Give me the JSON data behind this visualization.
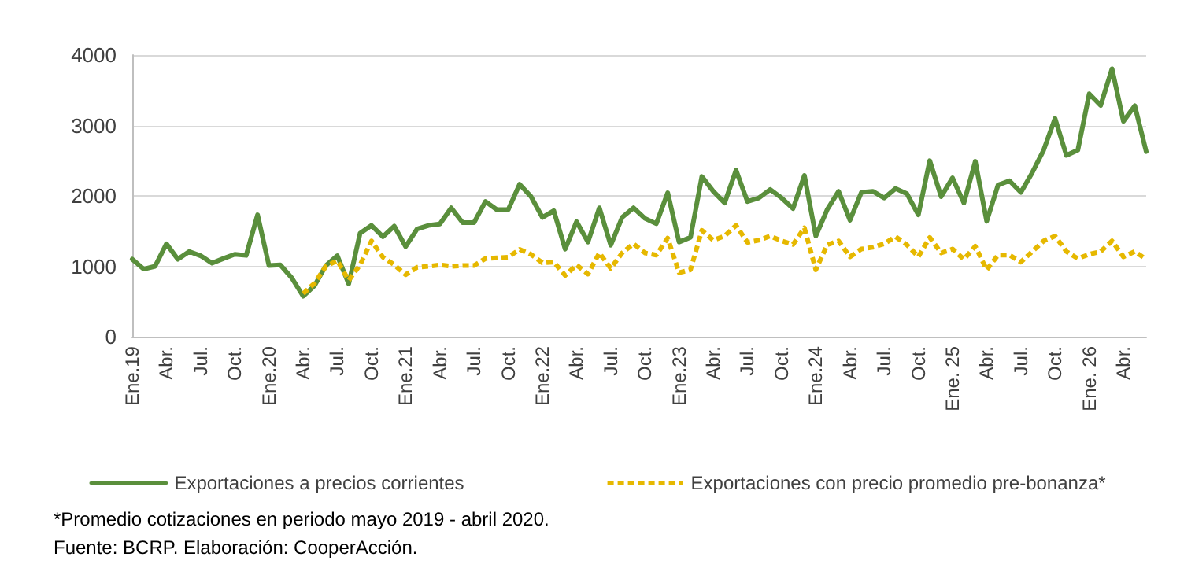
{
  "chart_data": {
    "type": "line",
    "categories": [
      "Ene.19",
      null,
      null,
      "Abr.",
      null,
      null,
      "Jul.",
      null,
      null,
      "Oct.",
      null,
      null,
      "Ene.20",
      null,
      null,
      "Abr.",
      null,
      null,
      "Jul.",
      null,
      null,
      "Oct.",
      null,
      null,
      "Ene.21",
      null,
      null,
      "Abr.",
      null,
      null,
      "Jul.",
      null,
      null,
      "Oct.",
      null,
      null,
      "Ene.22",
      null,
      null,
      "Abr.",
      null,
      null,
      "Jul.",
      null,
      null,
      "Oct.",
      null,
      null,
      "Ene.23",
      null,
      null,
      "Abr.",
      null,
      null,
      "Jul.",
      null,
      null,
      "Oct.",
      null,
      null,
      "Ene.24",
      null,
      null,
      "Abr.",
      null,
      null,
      "Jul.",
      null,
      null,
      "Oct.",
      null,
      null,
      "Ene. 25",
      null,
      null,
      "Abr.",
      null,
      null,
      "Jul.",
      null,
      null,
      "Oct.",
      null,
      null,
      "Ene. 26",
      null,
      null,
      "Abr.",
      null,
      null
    ],
    "series": [
      {
        "name": "Exportaciones a precios corrientes",
        "color": "#5a8f3c",
        "line_style": "solid",
        "values": [
          1100,
          960,
          1000,
          1320,
          1100,
          1210,
          1150,
          1045,
          1110,
          1170,
          1155,
          1730,
          1010,
          1020,
          835,
          575,
          725,
          1010,
          1150,
          750,
          1470,
          1580,
          1420,
          1570,
          1280,
          1530,
          1580,
          1600,
          1830,
          1620,
          1620,
          1920,
          1805,
          1805,
          2165,
          1990,
          1695,
          1790,
          1245,
          1635,
          1345,
          1830,
          1300,
          1695,
          1830,
          1680,
          1605,
          2045,
          1345,
          1410,
          2275,
          2065,
          1900,
          2365,
          1920,
          1970,
          2090,
          1970,
          1820,
          2290,
          1430,
          1805,
          2065,
          1655,
          2050,
          2065,
          1970,
          2105,
          2030,
          1730,
          2500,
          1990,
          2255,
          1900,
          2490,
          1640,
          2155,
          2215,
          2050,
          2330,
          2650,
          3100,
          2575,
          2650,
          3450,
          3285,
          3805,
          3060,
          3280,
          2630
        ]
      },
      {
        "name": "Exportaciones con precio promedio pre-bonanza*",
        "color": "#e6b800",
        "line_style": "dashed",
        "values": [
          null,
          null,
          null,
          null,
          null,
          null,
          null,
          null,
          null,
          null,
          null,
          null,
          null,
          null,
          null,
          610,
          760,
          1000,
          1080,
          800,
          1020,
          1360,
          1130,
          1020,
          880,
          985,
          1000,
          1020,
          1000,
          1010,
          1010,
          1110,
          1120,
          1130,
          1240,
          1170,
          1050,
          1060,
          870,
          1020,
          890,
          1190,
          970,
          1190,
          1320,
          1190,
          1160,
          1400,
          910,
          950,
          1510,
          1370,
          1430,
          1580,
          1340,
          1370,
          1430,
          1360,
          1310,
          1545,
          950,
          1305,
          1360,
          1135,
          1245,
          1270,
          1320,
          1420,
          1305,
          1135,
          1410,
          1190,
          1245,
          1100,
          1285,
          950,
          1160,
          1160,
          1060,
          1210,
          1360,
          1430,
          1210,
          1110,
          1170,
          1210,
          1360,
          1135,
          1210,
          1100
        ]
      }
    ],
    "ylim": [
      0,
      4000
    ],
    "yticks": [
      0,
      1000,
      2000,
      3000,
      4000
    ],
    "grid": "y",
    "legend": "bottom",
    "marker": "none",
    "annotations": [
      "*Promedio cotizaciones en periodo mayo 2019 - abril 2020.",
      "Fuente: BCRP. Elaboración: CooperAcción."
    ]
  }
}
